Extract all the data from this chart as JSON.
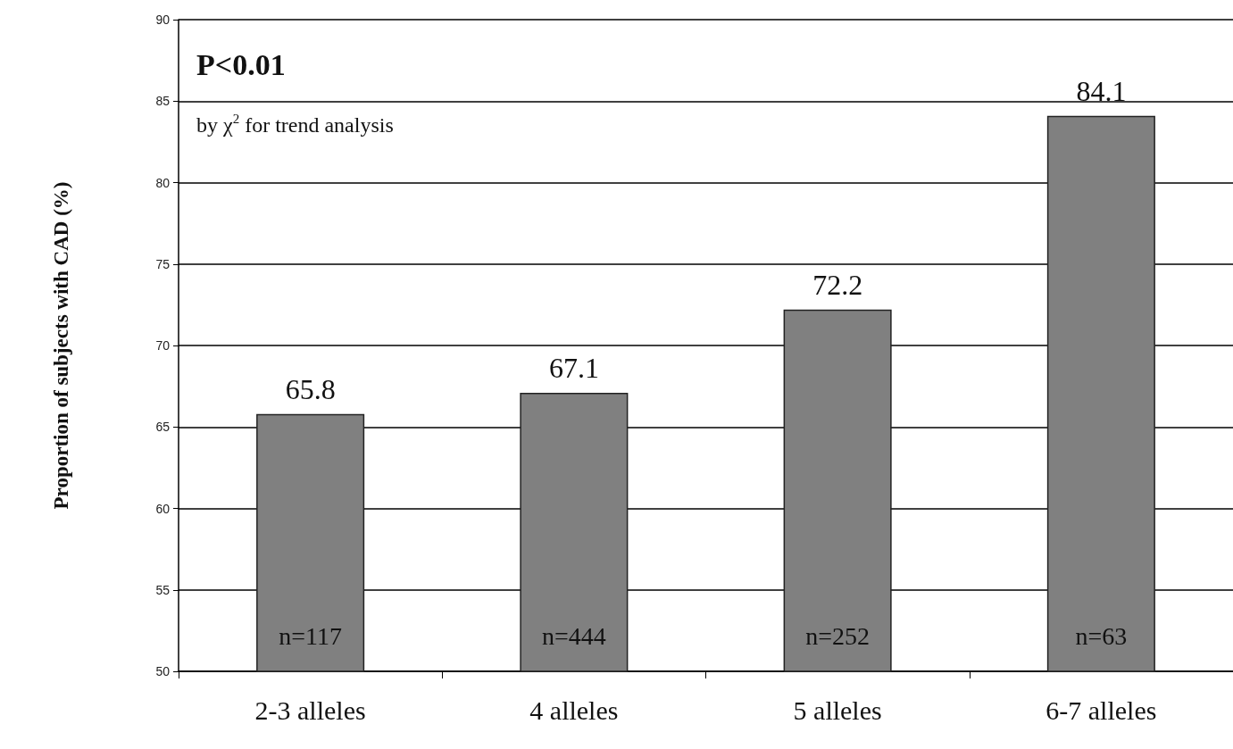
{
  "chart_data": {
    "type": "bar",
    "ylabel": "Proportion of subjects with CAD (%)",
    "categories": [
      "2-3 alleles",
      "4 alleles",
      "5 alleles",
      "6-7 alleles"
    ],
    "values": [
      65.8,
      67.1,
      72.2,
      84.1
    ],
    "color": "#808080",
    "ylim": [
      50,
      90
    ],
    "yticks": [
      50,
      55,
      60,
      65,
      70,
      75,
      80,
      85,
      90
    ],
    "grid": "y",
    "data_labels": true,
    "annotations": [
      "P<0.01",
      "by χ$^{2}$ for trend analysis",
      "n=117",
      "n=444",
      "n=252",
      "n=63"
    ]
  }
}
